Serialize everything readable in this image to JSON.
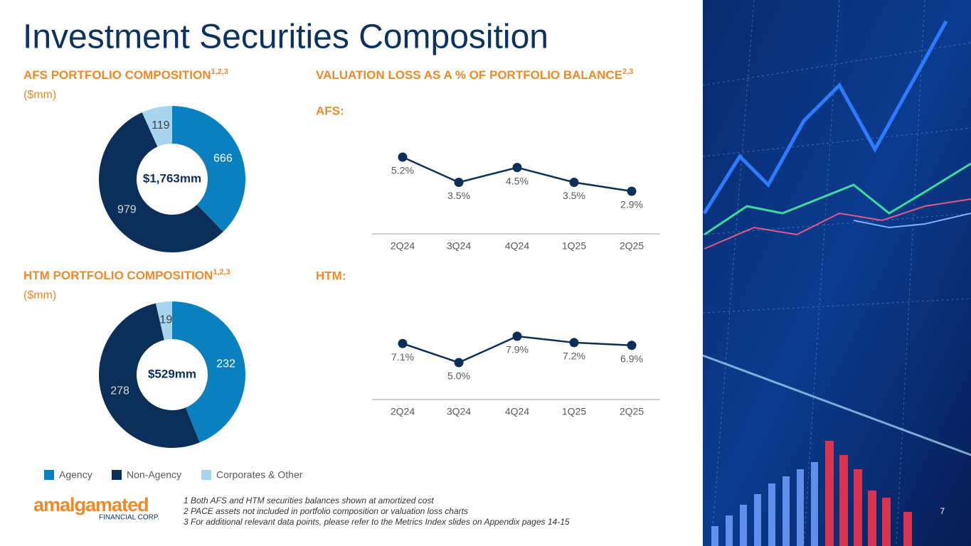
{
  "title": "Investment Securities Composition",
  "chart_data": [
    {
      "type": "donut",
      "title": "AFS PORTFOLIO COMPOSITION",
      "title_note": "1,2,3",
      "subtitle": "($mm)",
      "center_label": "$1,763mm",
      "categories": [
        "Agency",
        "Non-Agency",
        "Corporates & Other"
      ],
      "values": [
        666,
        979,
        119
      ],
      "colors": [
        "#0a80bf",
        "#0c2f5a",
        "#a8d4ed"
      ]
    },
    {
      "type": "donut",
      "title": "HTM PORTFOLIO COMPOSITION",
      "title_note": "1,2,3",
      "subtitle": "($mm)",
      "center_label": "$529mm",
      "categories": [
        "Agency",
        "Non-Agency",
        "Corporates & Other"
      ],
      "values": [
        232,
        278,
        19
      ],
      "colors": [
        "#0a80bf",
        "#0c2f5a",
        "#a8d4ed"
      ]
    },
    {
      "type": "line",
      "title": "VALUATION LOSS AS A % OF PORTFOLIO BALANCE",
      "title_note": "2,3",
      "subtitle": "AFS:",
      "categories": [
        "2Q24",
        "3Q24",
        "4Q24",
        "1Q25",
        "2Q25"
      ],
      "values": [
        5.2,
        3.5,
        4.5,
        3.5,
        2.9
      ],
      "value_labels": [
        "5.2%",
        "3.5%",
        "4.5%",
        "3.5%",
        "2.9%"
      ],
      "color": "#0c2f5a"
    },
    {
      "type": "line",
      "subtitle": "HTM:",
      "categories": [
        "2Q24",
        "3Q24",
        "4Q24",
        "1Q25",
        "2Q25"
      ],
      "values": [
        7.1,
        5.0,
        7.9,
        7.2,
        6.9
      ],
      "value_labels": [
        "7.1%",
        "5.0%",
        "7.9%",
        "7.2%",
        "6.9%"
      ],
      "color": "#0c2f5a"
    }
  ],
  "footnotes": [
    "1 Both AFS and HTM securities balances shown at amortized cost",
    "2 PACE assets not included in portfolio composition or valuation loss charts",
    "3 For additional relevant data points, please refer to the Metrics Index slides on Appendix pages 14-15"
  ],
  "logo": {
    "name": "amalgamated",
    "tagline": "FINANCIAL CORP."
  },
  "page_number": "7"
}
